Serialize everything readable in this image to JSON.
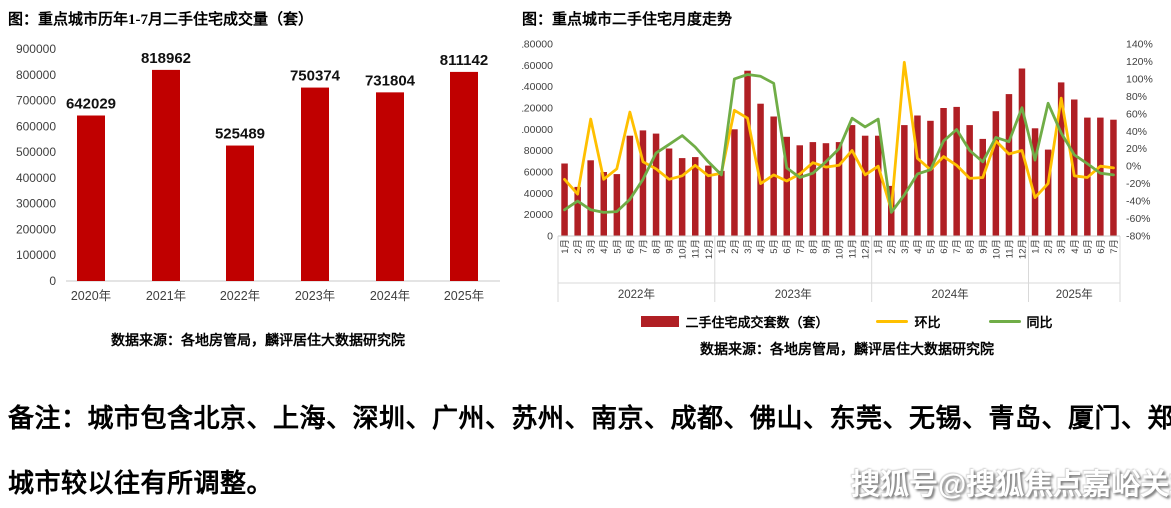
{
  "page": {
    "note_line1": "备注：城市包含北京、上海、深圳、广州、苏州、南京、成都、佛山、东莞、无锡、青岛、厦门、郑州，",
    "note_line2": "城市较以往有所调整。",
    "watermark": "搜狐号@搜狐焦点嘉峪关站"
  },
  "colors": {
    "bar_left": "#c00000",
    "bar_right": "#b01f24",
    "mom_line": "#ffc000",
    "yoy_line": "#70ad47",
    "axis_text": "#3f3f3f",
    "axis_line": "#c9c9c9"
  },
  "chart_data": [
    {
      "type": "bar",
      "title": "图：重点城市历年1-7月二手住宅成交量（套）",
      "categories": [
        "2020年",
        "2021年",
        "2022年",
        "2023年",
        "2024年",
        "2025年"
      ],
      "values": [
        642029,
        818962,
        525489,
        750374,
        731804,
        811142
      ],
      "data_labels": [
        "642029",
        "818962",
        "525489",
        "750374",
        "731804",
        "811142"
      ],
      "ylim": [
        0,
        900000
      ],
      "ytick_step": 100000,
      "grid": false,
      "source": "数据来源：各地房管局，麟评居住大数据研究院"
    },
    {
      "type": "combo-bar-line",
      "title": "图：重点城市二手住宅月度走势",
      "year_groups": [
        {
          "label": "2022年",
          "months": [
            "1月",
            "2月",
            "3月",
            "4月",
            "5月",
            "6月",
            "7月",
            "8月",
            "9月",
            "10月",
            "11月",
            "12月"
          ]
        },
        {
          "label": "2023年",
          "months": [
            "1月",
            "2月",
            "3月",
            "4月",
            "5月",
            "6月",
            "7月",
            "8月",
            "9月",
            "10月",
            "11月",
            "12月"
          ]
        },
        {
          "label": "2024年",
          "months": [
            "1月",
            "2月",
            "3月",
            "4月",
            "5月",
            "6月",
            "7月",
            "8月",
            "9月",
            "10月",
            "11月",
            "12月"
          ]
        },
        {
          "label": "2025年",
          "months": [
            "1月",
            "2月",
            "3月",
            "4月",
            "5月",
            "6月",
            "7月"
          ]
        }
      ],
      "series": [
        {
          "name": "二手住宅成交套数（套）",
          "type": "bar",
          "axis": "left",
          "color": "#b01f24",
          "values": [
            68000,
            46000,
            71000,
            60000,
            58000,
            94000,
            99000,
            96000,
            82000,
            73000,
            74000,
            66000,
            61000,
            100000,
            155000,
            124000,
            112000,
            93000,
            85000,
            88000,
            87000,
            88000,
            104000,
            94000,
            94000,
            47000,
            104000,
            113000,
            108000,
            120000,
            121000,
            104000,
            91000,
            117000,
            133000,
            157000,
            101000,
            81000,
            144000,
            128000,
            111000,
            111000,
            109000
          ]
        },
        {
          "name": "环比",
          "type": "line",
          "axis": "right",
          "color": "#ffc000",
          "values": [
            -15,
            -32,
            54,
            -15,
            -3,
            62,
            5,
            -3,
            -15,
            -11,
            1,
            -11,
            -8,
            64,
            55,
            -20,
            -10,
            -17,
            -9,
            4,
            -1,
            1,
            18,
            -10,
            0,
            -50,
            119,
            9,
            -4,
            11,
            1,
            -14,
            -13,
            29,
            14,
            18,
            -36,
            -20,
            78,
            -11,
            -13,
            0,
            -2
          ]
        },
        {
          "name": "同比",
          "type": "line",
          "axis": "right",
          "color": "#70ad47",
          "values": [
            -50,
            -40,
            -50,
            -53,
            -52,
            -38,
            -15,
            15,
            25,
            35,
            22,
            5,
            -10,
            100,
            105,
            103,
            95,
            -2,
            -13,
            -8,
            5,
            20,
            55,
            45,
            54,
            -53,
            -33,
            -9,
            -4,
            29,
            42,
            18,
            5,
            33,
            28,
            67,
            7,
            72,
            38,
            13,
            3,
            -8,
            -10
          ]
        }
      ],
      "left_ylim": [
        0,
        180000
      ],
      "left_ytick_step": 20000,
      "right_ylim_pct": [
        -80,
        140
      ],
      "right_ytick_step_pct": 20,
      "grid": false,
      "legend_position": "bottom",
      "source": "数据来源：各地房管局，麟评居住大数据研究院"
    }
  ]
}
